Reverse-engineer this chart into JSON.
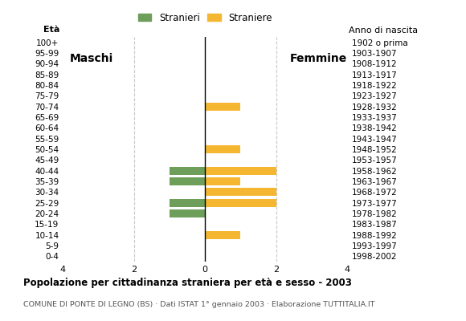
{
  "age_groups_bottom_to_top": [
    "0-4",
    "5-9",
    "10-14",
    "15-19",
    "20-24",
    "25-29",
    "30-34",
    "35-39",
    "40-44",
    "45-49",
    "50-54",
    "55-59",
    "60-64",
    "65-69",
    "70-74",
    "75-79",
    "80-84",
    "85-89",
    "90-94",
    "95-99",
    "100+"
  ],
  "birth_years_bottom_to_top": [
    "1998-2002",
    "1993-1997",
    "1988-1992",
    "1983-1987",
    "1978-1982",
    "1973-1977",
    "1968-1972",
    "1963-1967",
    "1958-1962",
    "1953-1957",
    "1948-1952",
    "1943-1947",
    "1938-1942",
    "1933-1937",
    "1928-1932",
    "1923-1927",
    "1918-1922",
    "1913-1917",
    "1908-1912",
    "1903-1907",
    "1902 o prima"
  ],
  "males_bottom_to_top": [
    0,
    0,
    0,
    0,
    1,
    1,
    0,
    1,
    1,
    0,
    0,
    0,
    0,
    0,
    0,
    0,
    0,
    0,
    0,
    0,
    0
  ],
  "females_bottom_to_top": [
    0,
    0,
    1,
    0,
    0,
    2,
    2,
    1,
    2,
    0,
    1,
    0,
    0,
    0,
    1,
    0,
    0,
    0,
    0,
    0,
    0
  ],
  "male_color": "#6d9e5a",
  "female_color": "#f5b731",
  "background_color": "#ffffff",
  "grid_color": "#c8c8c8",
  "title": "Popolazione per cittadinanza straniera per età e sesso - 2003",
  "subtitle": "COMUNE DI PONTE DI LEGNO (BS) · Dati ISTAT 1° gennaio 2003 · Elaborazione TUTTITALIA.IT",
  "legend_stranieri": "Stranieri",
  "legend_straniere": "Straniere",
  "label_maschi": "Maschi",
  "label_femmine": "Femmine",
  "label_eta": "Età",
  "label_anno": "Anno di nascita",
  "xlim": 4,
  "xticks": [
    -4,
    -2,
    0,
    2,
    4
  ],
  "xticklabels": [
    "4",
    "2",
    "0",
    "2",
    "4"
  ]
}
